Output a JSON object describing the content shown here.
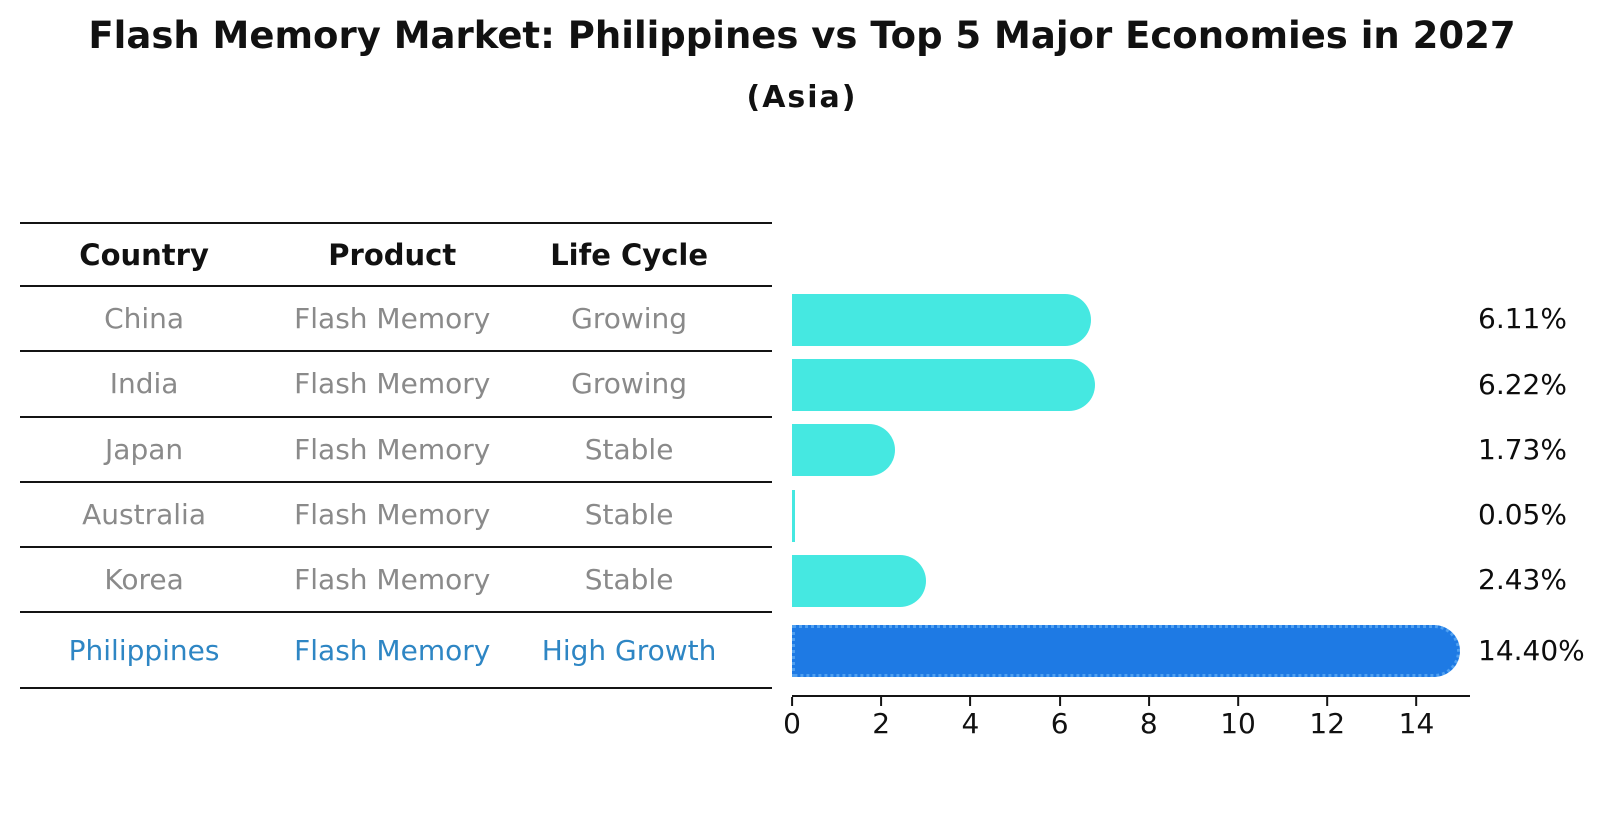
{
  "header": {
    "title": "Flash Memory Market: Philippines vs Top 5 Major Economies in 2027",
    "subtitle": "(Asia)"
  },
  "table": {
    "columns": [
      "Country",
      "Product",
      "Life Cycle"
    ],
    "rows": [
      {
        "country": "China",
        "product": "Flash Memory",
        "life_cycle": "Growing",
        "value_label": "6.11%"
      },
      {
        "country": "India",
        "product": "Flash Memory",
        "life_cycle": "Growing",
        "value_label": "6.22%"
      },
      {
        "country": "Japan",
        "product": "Flash Memory",
        "life_cycle": "Stable",
        "value_label": "1.73%"
      },
      {
        "country": "Australia",
        "product": "Flash Memory",
        "life_cycle": "Stable",
        "value_label": "0.05%"
      },
      {
        "country": "Korea",
        "product": "Flash Memory",
        "life_cycle": "Stable",
        "value_label": "2.43%"
      },
      {
        "country": "Philippines",
        "product": "Flash Memory",
        "life_cycle": "High Growth",
        "value_label": "14.40%"
      }
    ]
  },
  "chart_data": {
    "type": "bar",
    "orientation": "horizontal",
    "title": "Flash Memory Market: Philippines vs Top 5 Major Economies in 2027",
    "subtitle": "(Asia)",
    "categories": [
      "China",
      "India",
      "Japan",
      "Australia",
      "Korea",
      "Philippines"
    ],
    "values": [
      6.11,
      6.22,
      1.73,
      0.05,
      2.43,
      14.4
    ],
    "value_labels": [
      "6.11%",
      "6.22%",
      "1.73%",
      "0.05%",
      "2.43%",
      "14.40%"
    ],
    "xlabel": "",
    "ylabel": "",
    "xlim": [
      0,
      15.2
    ],
    "xticks": [
      0,
      2,
      4,
      6,
      8,
      10,
      12,
      14
    ],
    "grid": false,
    "legend": false,
    "bar_color": "#45e8e1",
    "highlight_index": 5,
    "highlight_bar_color": "#1e7ae4",
    "highlight_border_color": "#50a0f0",
    "highlight_text_color": "#2e86c4"
  }
}
